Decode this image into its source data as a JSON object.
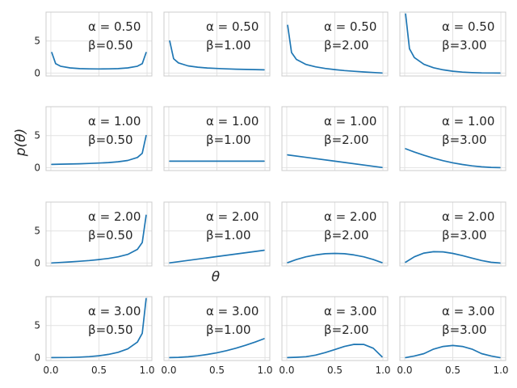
{
  "chart_data": {
    "type": "line",
    "ylabel": "p(θ)",
    "xlabel": "θ",
    "xlim": [
      0,
      1
    ],
    "ylim": [
      -0.46,
      9.5
    ],
    "x_ticks": [
      "0.0",
      "0.5",
      "1.0"
    ],
    "y_ticks": [
      "0",
      "5"
    ],
    "grid": true,
    "line_color": "#1f77b4",
    "alphas": [
      0.5,
      1.0,
      2.0,
      3.0
    ],
    "betas": [
      0.5,
      1.0,
      2.0,
      3.0
    ],
    "alpha_labels": [
      "0.50",
      "1.00",
      "2.00",
      "3.00"
    ],
    "beta_labels": [
      "0.50",
      "1.00",
      "2.00",
      "3.00"
    ],
    "panels": [
      {
        "alpha": 0.5,
        "beta": 0.5,
        "label_alpha": "α = 0.50",
        "label_beta": "β=0.50",
        "x": [
          0.01,
          0.05,
          0.1,
          0.2,
          0.3,
          0.4,
          0.5,
          0.6,
          0.7,
          0.8,
          0.9,
          0.95,
          0.99
        ],
        "y": [
          3.2,
          1.46,
          1.06,
          0.8,
          0.69,
          0.65,
          0.64,
          0.65,
          0.69,
          0.8,
          1.06,
          1.46,
          3.2
        ]
      },
      {
        "alpha": 0.5,
        "beta": 1.0,
        "label_alpha": "α = 0.50",
        "label_beta": "β=1.00",
        "x": [
          0.01,
          0.05,
          0.1,
          0.2,
          0.3,
          0.4,
          0.5,
          0.6,
          0.7,
          0.8,
          0.9,
          0.99
        ],
        "y": [
          5.0,
          2.24,
          1.58,
          1.12,
          0.91,
          0.79,
          0.71,
          0.65,
          0.6,
          0.56,
          0.53,
          0.5
        ]
      },
      {
        "alpha": 0.5,
        "beta": 2.0,
        "label_alpha": "α = 0.50",
        "label_beta": "β=2.00",
        "x": [
          0.01,
          0.05,
          0.1,
          0.2,
          0.3,
          0.4,
          0.5,
          0.6,
          0.7,
          0.8,
          0.9,
          0.99
        ],
        "y": [
          7.43,
          3.19,
          2.13,
          1.34,
          0.96,
          0.71,
          0.53,
          0.39,
          0.27,
          0.17,
          0.08,
          0.01
        ]
      },
      {
        "alpha": 0.5,
        "beta": 3.0,
        "label_alpha": "α = 0.50",
        "label_beta": "β=3.00",
        "x": [
          0.01,
          0.05,
          0.1,
          0.2,
          0.3,
          0.4,
          0.5,
          0.6,
          0.7,
          0.8,
          0.9,
          0.99
        ],
        "y": [
          9.2,
          3.79,
          2.42,
          1.35,
          0.82,
          0.5,
          0.29,
          0.15,
          0.07,
          0.02,
          0.004,
          0.0
        ]
      },
      {
        "alpha": 1.0,
        "beta": 0.5,
        "label_alpha": "α = 1.00",
        "label_beta": "β=0.50",
        "x": [
          0.01,
          0.1,
          0.2,
          0.3,
          0.4,
          0.5,
          0.6,
          0.7,
          0.8,
          0.9,
          0.95,
          0.99
        ],
        "y": [
          0.5,
          0.53,
          0.56,
          0.6,
          0.65,
          0.71,
          0.79,
          0.91,
          1.12,
          1.58,
          2.24,
          5.0
        ]
      },
      {
        "alpha": 1.0,
        "beta": 1.0,
        "label_alpha": "α = 1.00",
        "label_beta": "β=1.00",
        "x": [
          0.01,
          0.5,
          0.99
        ],
        "y": [
          1.0,
          1.0,
          1.0
        ]
      },
      {
        "alpha": 1.0,
        "beta": 2.0,
        "label_alpha": "α = 1.00",
        "label_beta": "β=2.00",
        "x": [
          0.01,
          0.5,
          0.99
        ],
        "y": [
          1.98,
          1.0,
          0.02
        ]
      },
      {
        "alpha": 1.0,
        "beta": 3.0,
        "label_alpha": "α = 1.00",
        "label_beta": "β=3.00",
        "x": [
          0.01,
          0.1,
          0.2,
          0.3,
          0.4,
          0.5,
          0.6,
          0.7,
          0.8,
          0.9,
          0.99
        ],
        "y": [
          2.94,
          2.43,
          1.92,
          1.47,
          1.08,
          0.75,
          0.48,
          0.27,
          0.12,
          0.03,
          0.0
        ]
      },
      {
        "alpha": 2.0,
        "beta": 0.5,
        "label_alpha": "α = 2.00",
        "label_beta": "β=0.50",
        "x": [
          0.01,
          0.1,
          0.2,
          0.3,
          0.4,
          0.5,
          0.6,
          0.7,
          0.8,
          0.9,
          0.95,
          0.99
        ],
        "y": [
          0.01,
          0.08,
          0.17,
          0.27,
          0.39,
          0.53,
          0.71,
          0.96,
          1.34,
          2.13,
          3.19,
          7.43
        ]
      },
      {
        "alpha": 2.0,
        "beta": 1.0,
        "label_alpha": "α = 2.00",
        "label_beta": "β=1.00",
        "x": [
          0.01,
          0.5,
          0.99
        ],
        "y": [
          0.02,
          1.0,
          1.98
        ]
      },
      {
        "alpha": 2.0,
        "beta": 2.0,
        "label_alpha": "α = 2.00",
        "label_beta": "β=2.00",
        "x": [
          0.01,
          0.1,
          0.2,
          0.3,
          0.4,
          0.5,
          0.6,
          0.7,
          0.8,
          0.9,
          0.99
        ],
        "y": [
          0.06,
          0.54,
          0.96,
          1.26,
          1.44,
          1.5,
          1.44,
          1.26,
          0.96,
          0.54,
          0.06
        ]
      },
      {
        "alpha": 2.0,
        "beta": 3.0,
        "label_alpha": "α = 2.00",
        "label_beta": "β=3.00",
        "x": [
          0.01,
          0.1,
          0.2,
          0.3,
          0.4,
          0.5,
          0.6,
          0.7,
          0.8,
          0.9,
          0.99
        ],
        "y": [
          0.12,
          0.97,
          1.54,
          1.76,
          1.73,
          1.5,
          1.15,
          0.76,
          0.38,
          0.11,
          0.0
        ]
      },
      {
        "alpha": 3.0,
        "beta": 0.5,
        "label_alpha": "α = 3.00",
        "label_beta": "β=0.50",
        "x": [
          0.01,
          0.1,
          0.2,
          0.3,
          0.4,
          0.5,
          0.6,
          0.7,
          0.8,
          0.9,
          0.95,
          0.99
        ],
        "y": [
          0.0,
          0.004,
          0.02,
          0.07,
          0.15,
          0.29,
          0.5,
          0.82,
          1.35,
          2.42,
          3.79,
          9.2
        ]
      },
      {
        "alpha": 3.0,
        "beta": 1.0,
        "label_alpha": "α = 3.00",
        "label_beta": "β=1.00",
        "x": [
          0.01,
          0.1,
          0.2,
          0.3,
          0.4,
          0.5,
          0.6,
          0.7,
          0.8,
          0.9,
          0.99
        ],
        "y": [
          0.0,
          0.03,
          0.12,
          0.27,
          0.48,
          0.75,
          1.08,
          1.47,
          1.92,
          2.43,
          2.94
        ]
      },
      {
        "alpha": 3.0,
        "beta": 2.0,
        "label_alpha": "α = 3.00",
        "label_beta": "β=2.00",
        "x": [
          0.01,
          0.1,
          0.2,
          0.3,
          0.4,
          0.5,
          0.6,
          0.7,
          0.8,
          0.9,
          0.99
        ],
        "y": [
          0.0,
          0.04,
          0.13,
          0.38,
          0.77,
          1.25,
          1.73,
          2.06,
          2.05,
          1.46,
          0.12
        ]
      },
      {
        "alpha": 3.0,
        "beta": 3.0,
        "label_alpha": "α = 3.00",
        "label_beta": "β=3.00",
        "x": [
          0.01,
          0.1,
          0.2,
          0.3,
          0.4,
          0.5,
          0.6,
          0.7,
          0.8,
          0.9,
          0.99
        ],
        "y": [
          0.0,
          0.24,
          0.61,
          1.32,
          1.73,
          1.88,
          1.73,
          1.32,
          0.61,
          0.24,
          0.0
        ]
      }
    ]
  }
}
